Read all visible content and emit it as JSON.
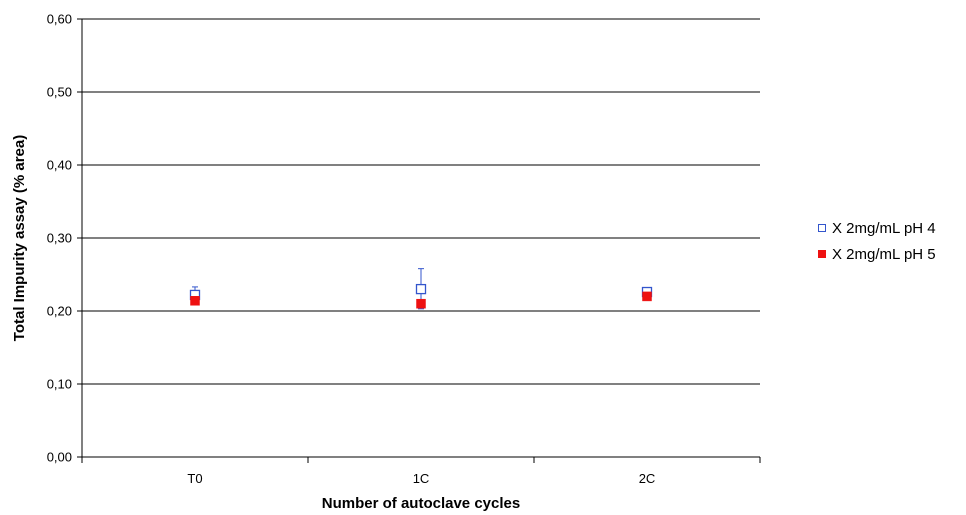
{
  "chart_data": {
    "type": "scatter",
    "title": "",
    "xlabel": "Number of autoclave cycles",
    "ylabel": "Total Impurity assay (% area)",
    "categories": [
      "T0",
      "1C",
      "2C"
    ],
    "ylim": [
      0,
      0.6
    ],
    "yticks": [
      0.0,
      0.1,
      0.2,
      0.3,
      0.4,
      0.5,
      0.6
    ],
    "ytick_labels": [
      "0,00",
      "0,10",
      "0,20",
      "0,30",
      "0,40",
      "0,50",
      "0,60"
    ],
    "grid": true,
    "legend_position": "right",
    "series": [
      {
        "name": "X 2mg/mL pH 4",
        "marker": "open-square",
        "color": "#3355cc",
        "values": [
          0.222,
          0.23,
          0.226
        ],
        "error_upper": [
          0.233,
          0.258,
          0.228
        ],
        "error_lower": [
          0.211,
          0.203,
          0.224
        ]
      },
      {
        "name": "X 2mg/mL pH 5",
        "marker": "filled-square",
        "color": "#ee1111",
        "values": [
          0.214,
          0.21,
          0.22
        ],
        "error_upper": [
          0.217,
          0.212,
          0.222
        ],
        "error_lower": [
          0.21,
          0.207,
          0.218
        ]
      }
    ]
  }
}
